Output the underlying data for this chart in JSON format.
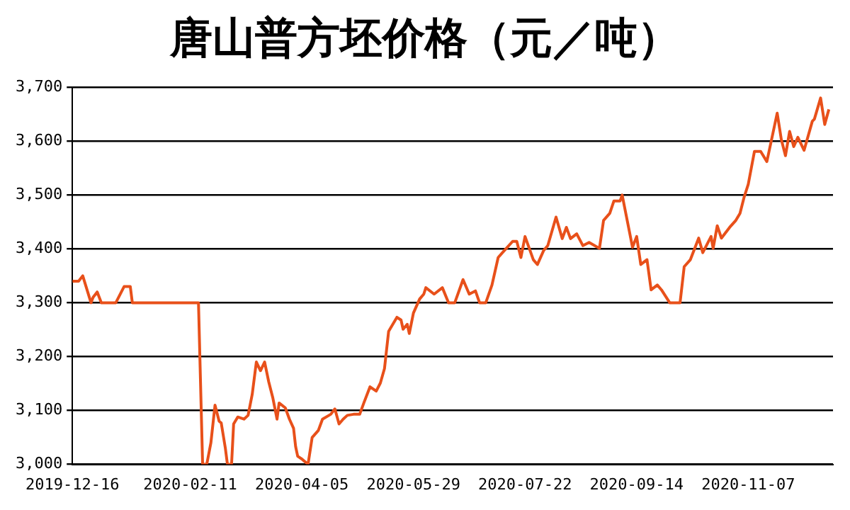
{
  "chart_data": {
    "type": "line",
    "title": "唐山普方坯价格（元／吨）",
    "x": [
      "2019-12-16",
      "2019-12-19",
      "2019-12-21",
      "2019-12-25",
      "2019-12-26",
      "2019-12-28",
      "2019-12-30",
      "2020-01-06",
      "2020-01-10",
      "2020-01-13",
      "2020-01-14",
      "2020-02-11",
      "2020-02-15",
      "2020-02-17",
      "2020-02-19",
      "2020-02-21",
      "2020-02-23",
      "2020-02-25",
      "2020-02-26",
      "2020-02-28",
      "2020-02-29",
      "2020-03-02",
      "2020-03-03",
      "2020-03-05",
      "2020-03-08",
      "2020-03-10",
      "2020-03-12",
      "2020-03-14",
      "2020-03-16",
      "2020-03-18",
      "2020-03-20",
      "2020-03-22",
      "2020-03-24",
      "2020-03-25",
      "2020-03-28",
      "2020-03-30",
      "2020-04-01",
      "2020-04-02",
      "2020-04-03",
      "2020-04-05",
      "2020-04-08",
      "2020-04-10",
      "2020-04-13",
      "2020-04-15",
      "2020-04-19",
      "2020-04-21",
      "2020-04-23",
      "2020-04-25",
      "2020-04-27",
      "2020-04-30",
      "2020-05-03",
      "2020-05-05",
      "2020-05-08",
      "2020-05-11",
      "2020-05-13",
      "2020-05-15",
      "2020-05-17",
      "2020-05-21",
      "2020-05-23",
      "2020-05-24",
      "2020-05-26",
      "2020-05-27",
      "2020-05-29",
      "2020-06-01",
      "2020-06-03",
      "2020-06-04",
      "2020-06-08",
      "2020-06-12",
      "2020-06-15",
      "2020-06-18",
      "2020-06-22",
      "2020-06-25",
      "2020-06-28",
      "2020-06-30",
      "2020-07-03",
      "2020-07-06",
      "2020-07-09",
      "2020-07-12",
      "2020-07-16",
      "2020-07-18",
      "2020-07-20",
      "2020-07-22",
      "2020-07-26",
      "2020-07-28",
      "2020-07-31",
      "2020-08-02",
      "2020-08-06",
      "2020-08-09",
      "2020-08-11",
      "2020-08-13",
      "2020-08-16",
      "2020-08-19",
      "2020-08-22",
      "2020-08-27",
      "2020-08-29",
      "2020-09-01",
      "2020-09-03",
      "2020-09-06",
      "2020-09-07",
      "2020-09-09",
      "2020-09-12",
      "2020-09-14",
      "2020-09-16",
      "2020-09-19",
      "2020-09-21",
      "2020-09-24",
      "2020-09-26",
      "2020-09-30",
      "2020-10-05",
      "2020-10-07",
      "2020-10-10",
      "2020-10-14",
      "2020-10-16",
      "2020-10-20",
      "2020-10-21",
      "2020-10-23",
      "2020-10-25",
      "2020-10-29",
      "2020-11-01",
      "2020-11-03",
      "2020-11-05",
      "2020-11-07",
      "2020-11-10",
      "2020-11-13",
      "2020-11-16",
      "2020-11-19",
      "2020-11-21",
      "2020-11-23",
      "2020-11-25",
      "2020-11-27",
      "2020-11-29",
      "2020-12-01",
      "2020-12-04",
      "2020-12-08",
      "2020-12-09",
      "2020-12-12",
      "2020-12-14",
      "2020-12-16"
    ],
    "series": [
      {
        "color": "#e8501a",
        "values": [
          3340,
          3340,
          3350,
          3300,
          3310,
          3320,
          3300,
          3300,
          3330,
          3330,
          3300,
          3300,
          3300,
          3000,
          3000,
          3040,
          3110,
          3080,
          3077,
          3030,
          3000,
          3000,
          3075,
          3088,
          3084,
          3091,
          3130,
          3190,
          3174,
          3190,
          3153,
          3123,
          3084,
          3114,
          3105,
          3084,
          3067,
          3033,
          3015,
          3010,
          3000,
          3050,
          3063,
          3084,
          3093,
          3103,
          3075,
          3084,
          3091,
          3093,
          3093,
          3114,
          3144,
          3136,
          3151,
          3178,
          3247,
          3273,
          3268,
          3251,
          3260,
          3243,
          3281,
          3307,
          3316,
          3328,
          3316,
          3328,
          3300,
          3300,
          3343,
          3316,
          3322,
          3300,
          3300,
          3333,
          3384,
          3397,
          3414,
          3414,
          3384,
          3423,
          3380,
          3371,
          3397,
          3406,
          3459,
          3419,
          3440,
          3419,
          3428,
          3406,
          3412,
          3401,
          3453,
          3466,
          3489,
          3489,
          3500,
          3461,
          3403,
          3423,
          3371,
          3380,
          3324,
          3333,
          3324,
          3300,
          3300,
          3367,
          3380,
          3420,
          3393,
          3423,
          3401,
          3443,
          3420,
          3440,
          3453,
          3466,
          3496,
          3520,
          3581,
          3581,
          3562,
          3616,
          3652,
          3603,
          3573,
          3618,
          3590,
          3607,
          3583,
          3637,
          3641,
          3680,
          3631,
          3659
        ]
      }
    ],
    "xlim": [
      "2019-12-16",
      "2020-12-18"
    ],
    "xticks": [
      "2019-12-16",
      "2020-02-11",
      "2020-04-05",
      "2020-05-29",
      "2020-07-22",
      "2020-09-14",
      "2020-11-07"
    ],
    "ylim": [
      3000,
      3700
    ],
    "yticks": [
      {
        "value": 3000,
        "label": "3,000"
      },
      {
        "value": 3100,
        "label": "3,100"
      },
      {
        "value": 3200,
        "label": "3,200"
      },
      {
        "value": 3300,
        "label": "3,300"
      },
      {
        "value": 3400,
        "label": "3,400"
      },
      {
        "value": 3500,
        "label": "3,500"
      },
      {
        "value": 3600,
        "label": "3,600"
      },
      {
        "value": 3700,
        "label": "3,700"
      }
    ],
    "grid": "y",
    "legend": false,
    "marker": "none",
    "line_style": "solid"
  }
}
